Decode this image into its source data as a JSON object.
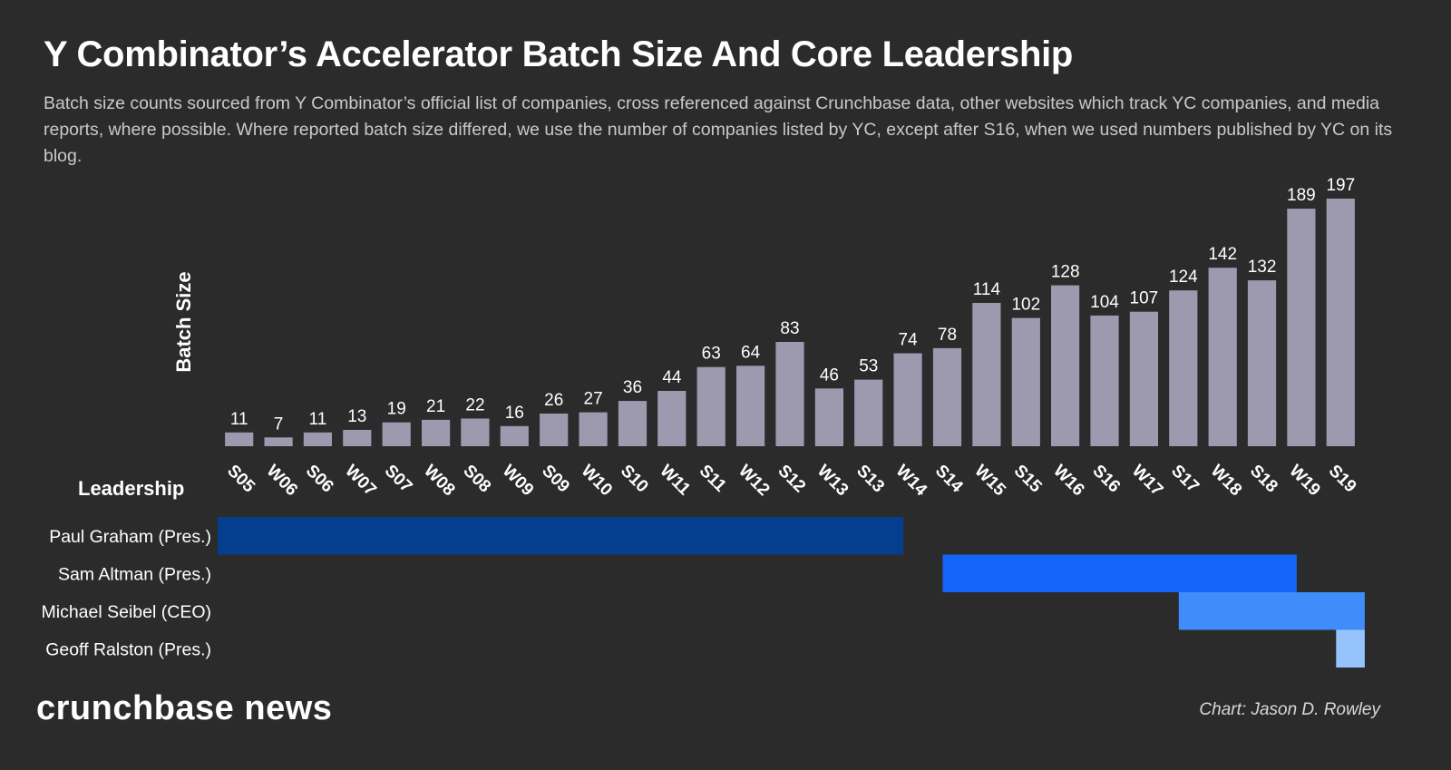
{
  "title": "Y Combinator’s Accelerator Batch Size And Core Leadership",
  "subtitle": "Batch size counts sourced from Y Combinator’s official list of companies, cross referenced against Crunchbase data, other websites which track YC companies, and media reports, where possible. Where reported batch size differed, we use the number of companies listed by YC, except after S16, when we used numbers published by YC on its blog.",
  "logo_text": "crunchbase news",
  "credit": "Chart: Jason D. Rowley",
  "chart_data": {
    "type": "bar",
    "title": "Y Combinator’s Accelerator Batch Size And Core Leadership",
    "ylabel": "Batch Size",
    "xlabel": "",
    "ylim": [
      0,
      200
    ],
    "grid": false,
    "bar_color": "#9d99ae",
    "categories": [
      "S05",
      "W06",
      "S06",
      "W07",
      "S07",
      "W08",
      "S08",
      "W09",
      "S09",
      "W10",
      "S10",
      "W11",
      "S11",
      "W12",
      "S12",
      "W13",
      "S13",
      "W14",
      "S14",
      "W15",
      "S15",
      "W16",
      "S16",
      "W17",
      "S17",
      "W18",
      "S18",
      "W19",
      "S19"
    ],
    "values": [
      11,
      7,
      11,
      13,
      19,
      21,
      22,
      16,
      26,
      27,
      36,
      44,
      63,
      64,
      83,
      46,
      53,
      74,
      78,
      114,
      102,
      128,
      104,
      107,
      124,
      142,
      132,
      189,
      197
    ]
  },
  "leadership": {
    "title": "Leadership",
    "rows": [
      {
        "name": "Paul Graham (Pres.)",
        "start": "S05",
        "end": "W14",
        "color": "#063e8f"
      },
      {
        "name": "Sam Altman (Pres.)",
        "start": "S14",
        "end": "W19",
        "color": "#1465f7"
      },
      {
        "name": "Michael Seibel (CEO)",
        "start": "S17",
        "end": "S19",
        "color": "#3f8cfa"
      },
      {
        "name": "Geoff Ralston (Pres.)",
        "start": "S19",
        "end": "S19",
        "color": "#97c3fd"
      }
    ]
  }
}
